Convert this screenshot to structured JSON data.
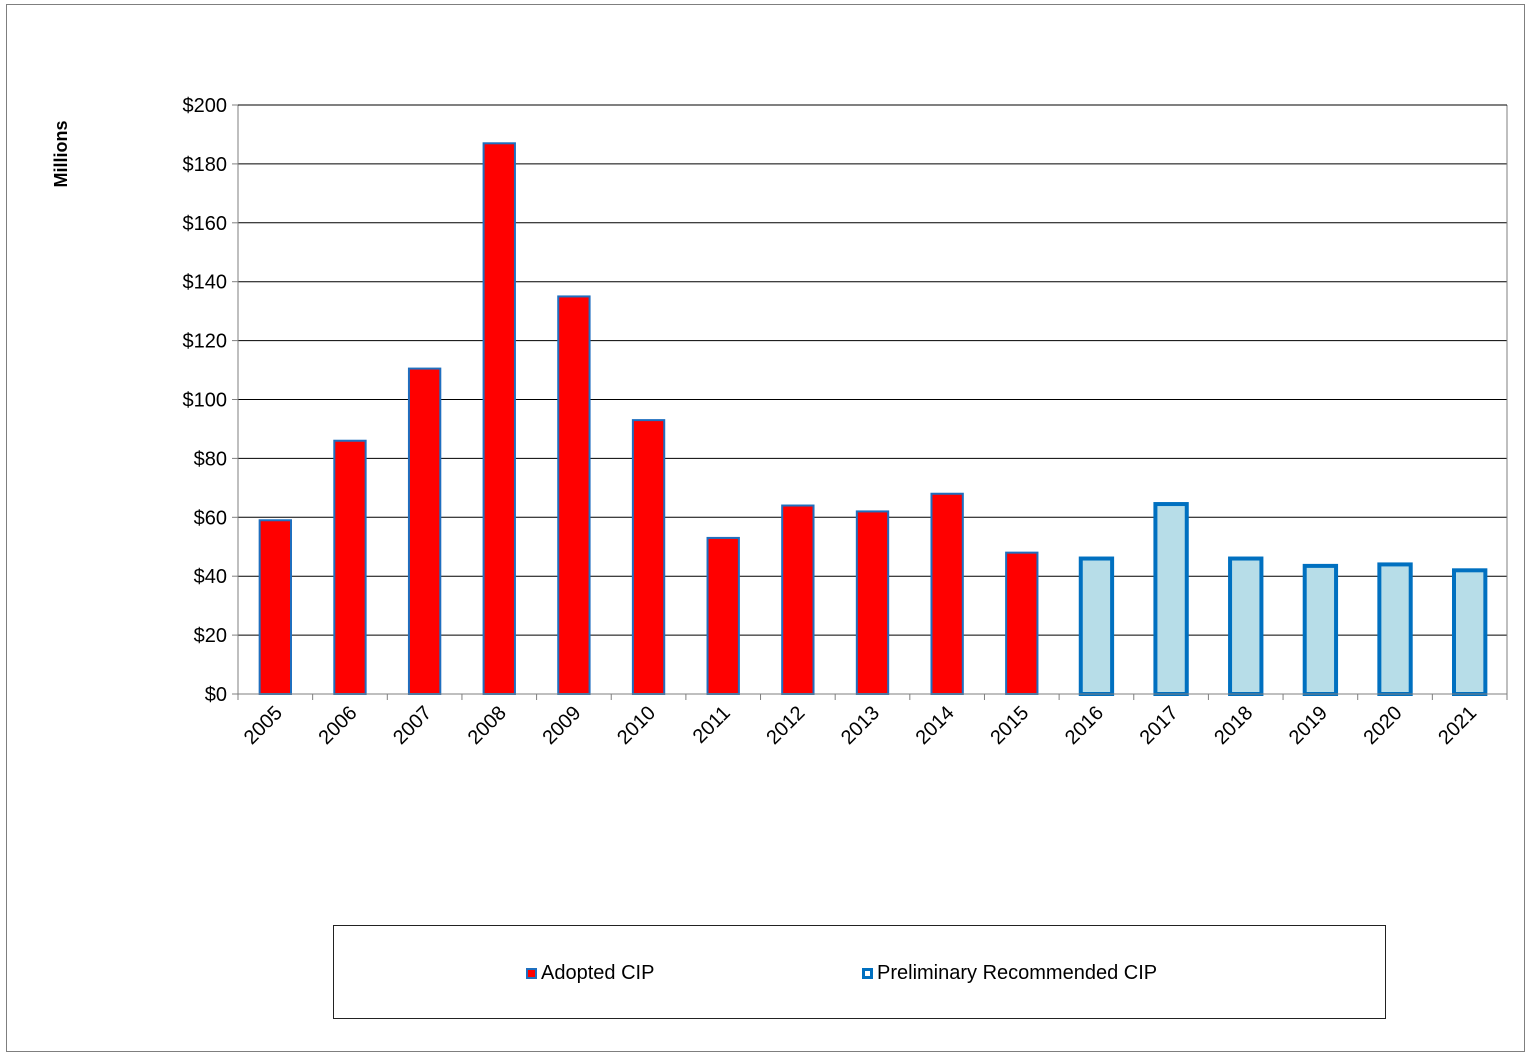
{
  "chart_data": {
    "type": "bar",
    "ylabel": "Millions",
    "ylim": [
      0,
      200
    ],
    "yticks": [
      "$0",
      "$20",
      "$40",
      "$60",
      "$80",
      "$100",
      "$120",
      "$140",
      "$160",
      "$180",
      "$200"
    ],
    "ytick_values": [
      0,
      20,
      40,
      60,
      80,
      100,
      120,
      140,
      160,
      180,
      200
    ],
    "categories": [
      "2005",
      "2006",
      "2007",
      "2008",
      "2009",
      "2010",
      "2011",
      "2012",
      "2013",
      "2014",
      "2015",
      "2016",
      "2017",
      "2018",
      "2019",
      "2020",
      "2021"
    ],
    "series": [
      {
        "name": "Adopted CIP",
        "color": "#ff0000",
        "edge_color": "#1f6fbf",
        "values": [
          59,
          86,
          110.5,
          187,
          135,
          93,
          53,
          64,
          62,
          68,
          48,
          null,
          null,
          null,
          null,
          null,
          null
        ]
      },
      {
        "name": "Preliminary Recommended CIP",
        "color": "#b7dde8",
        "edge_color": "#0070c0",
        "values": [
          null,
          null,
          null,
          null,
          null,
          null,
          null,
          null,
          null,
          null,
          null,
          46,
          64.5,
          46,
          43.5,
          44,
          42
        ]
      }
    ],
    "grid": true,
    "legend_position": "bottom"
  }
}
